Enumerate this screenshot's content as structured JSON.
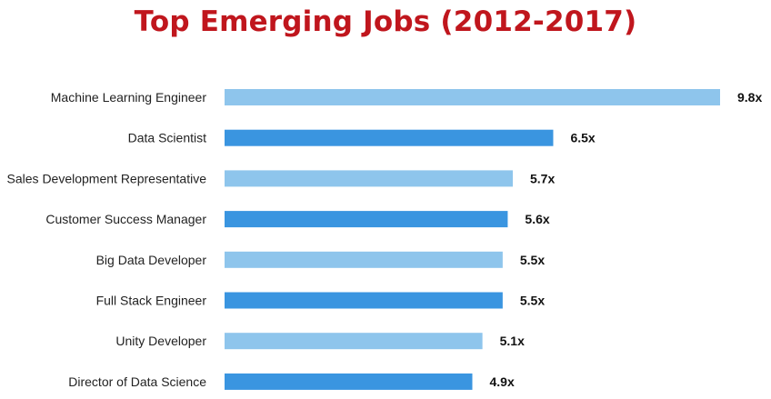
{
  "title": "Top Emerging Jobs (2012-2017)",
  "colors": {
    "title": "#c0161d",
    "bar_light": "#8ec5ec",
    "bar_dark": "#3a95e0"
  },
  "chart_data": {
    "type": "bar",
    "orientation": "horizontal",
    "title": "Top Emerging Jobs (2012-2017)",
    "xlabel": "",
    "ylabel": "",
    "xlim": [
      0,
      9.8
    ],
    "grid": false,
    "legend": "none",
    "categories": [
      "Machine Learning Engineer",
      "Data Scientist",
      "Sales Development Representative",
      "Customer Success Manager",
      "Big Data Developer",
      "Full Stack Engineer",
      "Unity Developer",
      "Director of Data Science"
    ],
    "values": [
      9.8,
      6.5,
      5.7,
      5.6,
      5.5,
      5.5,
      5.1,
      4.9
    ],
    "value_labels": [
      "9.8x",
      "6.5x",
      "5.7x",
      "5.6x",
      "5.5x",
      "5.5x",
      "5.1x",
      "4.9x"
    ]
  }
}
